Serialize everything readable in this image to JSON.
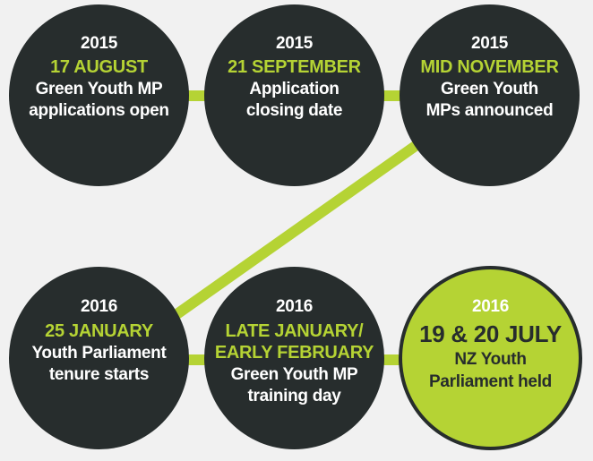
{
  "colors": {
    "background": "#f1f1f1",
    "dark": "#272d2d",
    "accent": "#b5d334"
  },
  "events": [
    {
      "year": "2015",
      "date": "17 AUGUST",
      "lines": [
        "Green Youth MP",
        "applications open"
      ]
    },
    {
      "year": "2015",
      "date": "21 SEPTEMBER",
      "lines": [
        "Application",
        "closing date"
      ]
    },
    {
      "year": "2015",
      "date": "MID NOVEMBER",
      "lines": [
        "Green Youth",
        "MPs announced"
      ]
    },
    {
      "year": "2016",
      "date": "25 JANUARY",
      "lines": [
        "Youth Parliament",
        "tenure starts"
      ]
    },
    {
      "year": "2016",
      "date": "LATE JANUARY/",
      "date2": "EARLY FEBRUARY",
      "lines": [
        "Green Youth MP",
        "training day"
      ]
    },
    {
      "year": "2016",
      "date": "19 & 20 JULY",
      "lines": [
        "NZ Youth",
        "Parliament held"
      ]
    }
  ]
}
